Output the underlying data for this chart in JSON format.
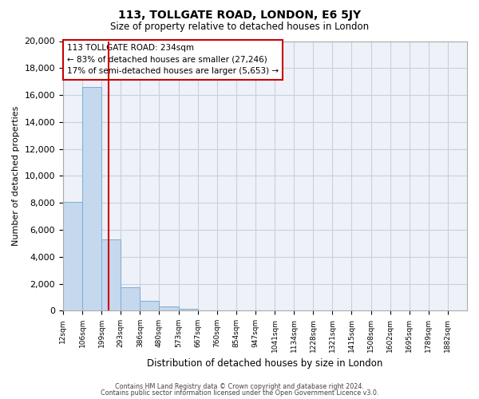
{
  "title": "113, TOLLGATE ROAD, LONDON, E6 5JY",
  "subtitle": "Size of property relative to detached houses in London",
  "xlabel": "Distribution of detached houses by size in London",
  "ylabel": "Number of detached properties",
  "bar_color": "#c5d8ed",
  "bar_edge_color": "#7aafd4",
  "background_color": "#eef1f8",
  "grid_color": "#c8cfe0",
  "annotation_box_color": "#cc0000",
  "vline_color": "#cc0000",
  "categories": [
    "12sqm",
    "106sqm",
    "199sqm",
    "293sqm",
    "386sqm",
    "480sqm",
    "573sqm",
    "667sqm",
    "760sqm",
    "854sqm",
    "947sqm",
    "1041sqm",
    "1134sqm",
    "1228sqm",
    "1321sqm",
    "1415sqm",
    "1508sqm",
    "1602sqm",
    "1695sqm",
    "1789sqm",
    "1882sqm"
  ],
  "values": [
    8100,
    16600,
    5300,
    1750,
    700,
    300,
    160,
    0,
    0,
    0,
    0,
    0,
    0,
    0,
    0,
    0,
    0,
    0,
    0,
    0,
    0
  ],
  "ylim": [
    0,
    20000
  ],
  "yticks": [
    0,
    2000,
    4000,
    6000,
    8000,
    10000,
    12000,
    14000,
    16000,
    18000,
    20000
  ],
  "vline_pos": 2.35,
  "annotation_text": "113 TOLLGATE ROAD: 234sqm\n← 83% of detached houses are smaller (27,246)\n17% of semi-detached houses are larger (5,653) →",
  "footer_line1": "Contains HM Land Registry data © Crown copyright and database right 2024.",
  "footer_line2": "Contains public sector information licensed under the Open Government Licence v3.0."
}
